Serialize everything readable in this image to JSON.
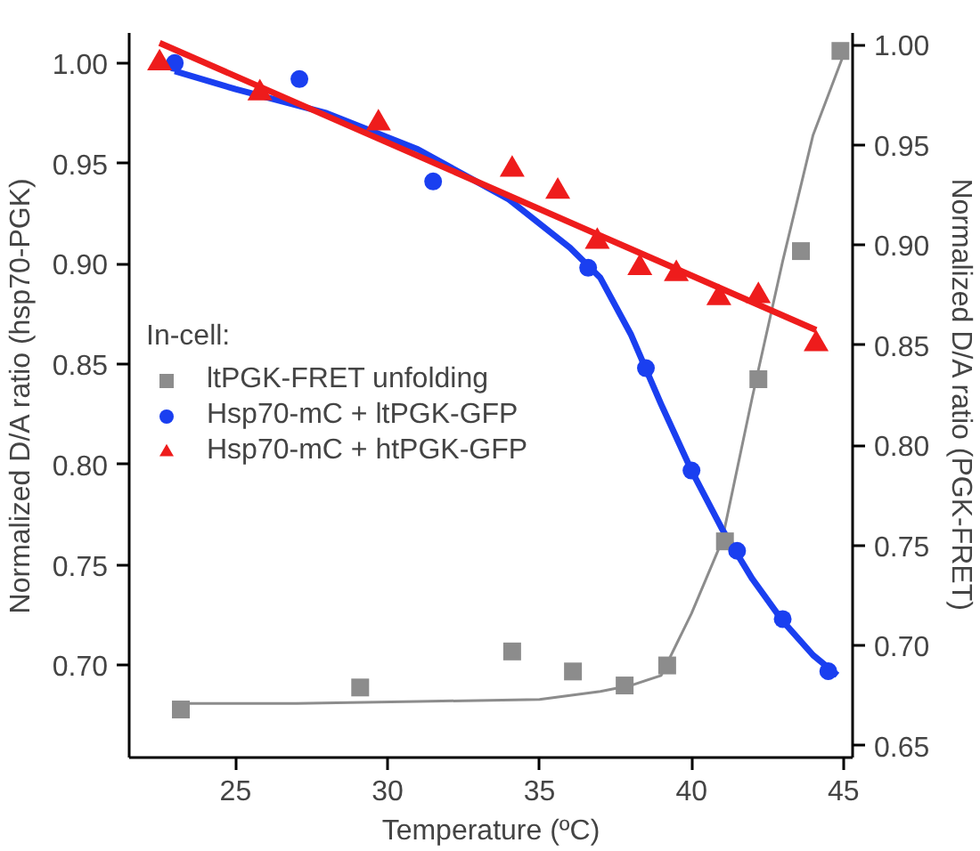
{
  "chart_data": {
    "type": "scatter",
    "xlabel": "Temperature (ºC)",
    "ylabel": "Normalized D/A ratio (hsp70-PGK)",
    "y2label": "Normalized D/A ratio (PGK-FRET)",
    "legend_title": "In-cell:",
    "legend": "left",
    "grid": false,
    "xlim": [
      21.5,
      45.3
    ],
    "xticks": [
      25,
      30,
      35,
      40,
      45
    ],
    "ylim": [
      0.654,
      1.015
    ],
    "yticks": [
      {
        "value": 0.7,
        "label": "0.70"
      },
      {
        "value": 0.75,
        "label": "0.75"
      },
      {
        "value": 0.8,
        "label": "0.80"
      },
      {
        "value": 0.85,
        "label": "0.85"
      },
      {
        "value": 0.9,
        "label": "0.90"
      },
      {
        "value": 0.95,
        "label": "0.95"
      },
      {
        "value": 1.0,
        "label": "1.00"
      }
    ],
    "y2lim": [
      0.644,
      1.006
    ],
    "y2ticks": [
      {
        "value": 0.65,
        "label": "0.65"
      },
      {
        "value": 0.7,
        "label": "0.70"
      },
      {
        "value": 0.75,
        "label": "0.75"
      },
      {
        "value": 0.8,
        "label": "0.80"
      },
      {
        "value": 0.85,
        "label": "0.85"
      },
      {
        "value": 0.9,
        "label": "0.90"
      },
      {
        "value": 0.95,
        "label": "0.95"
      },
      {
        "value": 1.0,
        "label": "1.00"
      }
    ],
    "series": [
      {
        "type": "line",
        "axis": "y2",
        "color": "#8c8c8c",
        "x": [
          23,
          27,
          31,
          35,
          37,
          38,
          39,
          40,
          41,
          42,
          43,
          44,
          45
        ],
        "values": [
          0.671,
          0.671,
          0.672,
          0.673,
          0.677,
          0.68,
          0.685,
          0.716,
          0.752,
          0.824,
          0.892,
          0.955,
          0.995
        ]
      },
      {
        "type": "line",
        "color": "#1a3ff0",
        "x": [
          23,
          25,
          28,
          31,
          34,
          36,
          37,
          38,
          39,
          40,
          41,
          42,
          43,
          44,
          44.8
        ],
        "values": [
          0.996,
          0.987,
          0.975,
          0.957,
          0.932,
          0.908,
          0.893,
          0.865,
          0.83,
          0.797,
          0.768,
          0.743,
          0.722,
          0.705,
          0.695
        ]
      },
      {
        "type": "line",
        "color": "#ee1c1c",
        "x": [
          22.5,
          44.1
        ],
        "values": [
          1.01,
          0.867
        ]
      },
      {
        "axis": "y2",
        "name": "ltPGK-FRET unfolding",
        "color": "#8c8c8c",
        "marker": "square",
        "x": [
          23.2,
          29.1,
          34.1,
          36.1,
          37.8,
          39.2,
          41.1,
          42.2,
          43.6,
          44.9
        ],
        "values": [
          0.668,
          0.679,
          0.697,
          0.687,
          0.68,
          0.69,
          0.752,
          0.833,
          0.897,
          0.997
        ]
      },
      {
        "name": "Hsp70-mC + ltPGK-GFP",
        "color": "#1a3ff0",
        "marker": "circle",
        "x": [
          23.0,
          27.1,
          31.5,
          36.6,
          38.5,
          40.0,
          41.5,
          43.0,
          44.5
        ],
        "values": [
          1.0,
          0.992,
          0.941,
          0.898,
          0.848,
          0.797,
          0.757,
          0.723,
          0.697
        ]
      },
      {
        "name": "Hsp70-mC + htPGK-GFP",
        "color": "#ee1c1c",
        "marker": "triangle",
        "x": [
          22.5,
          25.8,
          29.7,
          34.1,
          35.6,
          36.9,
          38.3,
          39.5,
          40.9,
          42.2,
          44.1
        ],
        "values": [
          1.0,
          0.985,
          0.97,
          0.947,
          0.936,
          0.911,
          0.898,
          0.895,
          0.883,
          0.884,
          0.86
        ]
      }
    ]
  }
}
